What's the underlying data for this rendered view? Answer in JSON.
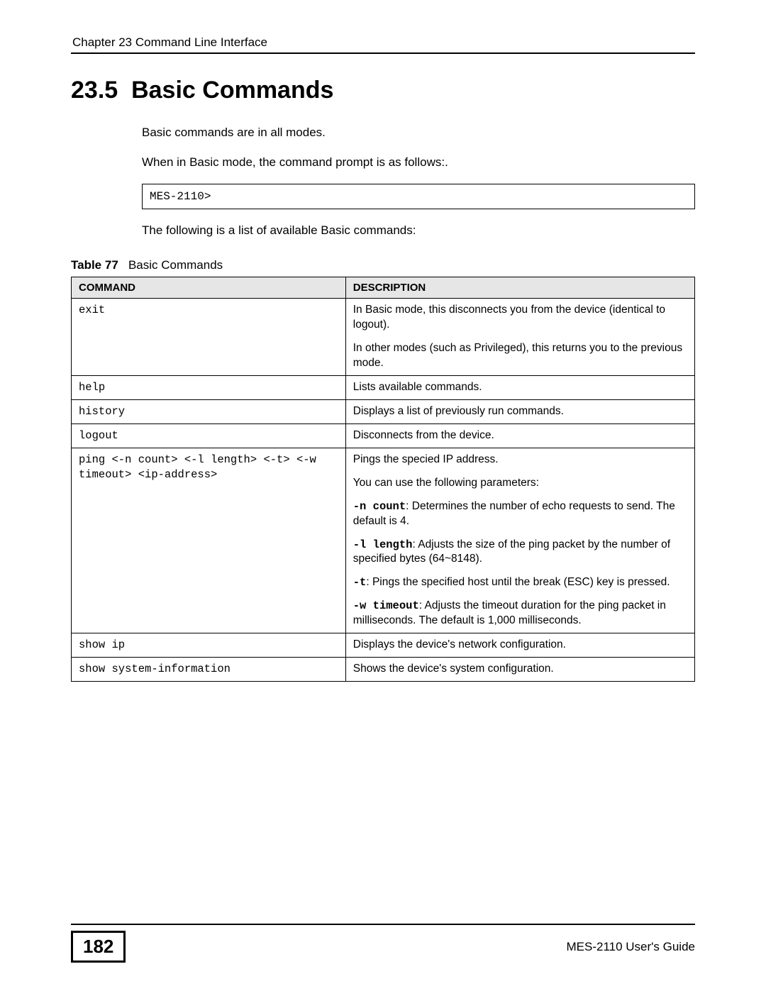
{
  "header": {
    "chapter": "Chapter 23 Command Line Interface"
  },
  "section": {
    "number": "23.5",
    "title": "Basic Commands"
  },
  "paragraphs": {
    "p1": "Basic commands are in all modes.",
    "p2": "When in Basic mode, the command prompt is as follows:.",
    "prompt": "MES-2110>",
    "p3": "The following is a list of available Basic commands:"
  },
  "table": {
    "caption_label": "Table 77",
    "caption_text": "Basic Commands",
    "head_command": "COMMAND",
    "head_description": "DESCRIPTION",
    "rows": [
      {
        "command": "exit",
        "desc_p1": "In Basic mode, this disconnects you from the device (identical to logout).",
        "desc_p2": "In other modes (such as Privileged), this returns you to the previous mode."
      },
      {
        "command": "help",
        "desc_p1": "Lists available commands."
      },
      {
        "command": "history",
        "desc_p1": "Displays a list of previously run commands."
      },
      {
        "command": "logout",
        "desc_p1": "Disconnects from the device."
      },
      {
        "command": "ping <-n count> <-l length> <-t> <-w timeout> <ip-address>",
        "desc_p1": "Pings the specied IP address.",
        "desc_p2": "You can use the following parameters:",
        "opt_n_label": "-n count",
        "opt_n_text": ": Determines the number of echo requests to send. The default is 4.",
        "opt_l_label": "-l length",
        "opt_l_text": ": Adjusts the size of the ping packet by the number of specified bytes (64~8148).",
        "opt_t_label": "-t",
        "opt_t_text": ": Pings the specified host until the break (ESC) key is pressed.",
        "opt_w_label": "-w timeout",
        "opt_w_text": ": Adjusts the timeout duration for the ping packet in milliseconds. The default is 1,000 milliseconds."
      },
      {
        "command": "show ip",
        "desc_p1": "Displays the device's network configuration."
      },
      {
        "command": "show system-information",
        "desc_p1": "Shows the device's system configuration."
      }
    ]
  },
  "footer": {
    "page_number": "182",
    "guide": "MES-2110 User's Guide"
  },
  "colors": {
    "table_header_bg": "#e6e6e6",
    "border": "#000000",
    "text": "#000000",
    "background": "#ffffff"
  }
}
